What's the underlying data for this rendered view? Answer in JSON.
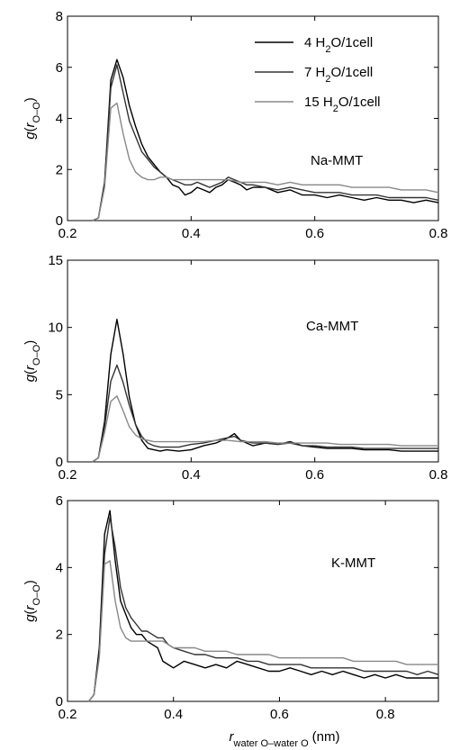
{
  "chart_data": [
    {
      "type": "line",
      "annotation": "Na-MMT",
      "ylabel": "g(r_{O–O})",
      "xlim": [
        0.2,
        0.8
      ],
      "ylim": [
        0,
        8
      ],
      "xticks": [
        0.2,
        0.4,
        0.6,
        0.8
      ],
      "xtick_labels": [
        "0.2",
        "0.4",
        "0.6",
        "0.8"
      ],
      "yticks": [
        0,
        2,
        4,
        6,
        8
      ],
      "ytick_labels": [
        "0",
        "2",
        "4",
        "6",
        "8"
      ],
      "legend": {
        "position": "top-right",
        "entries": [
          {
            "pre": "4 H",
            "sub": "2",
            "post": "O/1cell"
          },
          {
            "pre": "7 H",
            "sub": "2",
            "post": "O/1cell"
          },
          {
            "pre": "15 H",
            "sub": "2",
            "post": "O/1cell"
          }
        ]
      },
      "series": [
        {
          "name": "4 H2O/1cell",
          "color": "#000000",
          "x": [
            0.24,
            0.25,
            0.26,
            0.27,
            0.28,
            0.29,
            0.3,
            0.31,
            0.32,
            0.33,
            0.34,
            0.35,
            0.36,
            0.37,
            0.38,
            0.39,
            0.4,
            0.41,
            0.42,
            0.43,
            0.44,
            0.45,
            0.46,
            0.47,
            0.48,
            0.49,
            0.5,
            0.52,
            0.54,
            0.56,
            0.58,
            0.6,
            0.62,
            0.64,
            0.66,
            0.68,
            0.7,
            0.72,
            0.74,
            0.76,
            0.78,
            0.8
          ],
          "y": [
            0,
            0.1,
            1.5,
            5.5,
            6.3,
            5.6,
            4.5,
            3.7,
            3.0,
            2.5,
            2.2,
            1.9,
            1.7,
            1.4,
            1.3,
            1.0,
            1.1,
            1.3,
            1.2,
            1.1,
            1.3,
            1.4,
            1.6,
            1.5,
            1.4,
            1.2,
            1.3,
            1.3,
            1.1,
            1.2,
            1.0,
            1.0,
            0.9,
            1.0,
            0.9,
            0.8,
            0.9,
            0.8,
            0.8,
            0.7,
            0.8,
            0.7
          ]
        },
        {
          "name": "7 H2O/1cell",
          "color": "#333333",
          "x": [
            0.24,
            0.25,
            0.26,
            0.27,
            0.28,
            0.29,
            0.3,
            0.31,
            0.32,
            0.33,
            0.34,
            0.35,
            0.36,
            0.37,
            0.38,
            0.39,
            0.4,
            0.41,
            0.42,
            0.43,
            0.44,
            0.45,
            0.46,
            0.47,
            0.48,
            0.49,
            0.5,
            0.52,
            0.54,
            0.56,
            0.58,
            0.6,
            0.62,
            0.64,
            0.66,
            0.68,
            0.7,
            0.72,
            0.74,
            0.76,
            0.78,
            0.8
          ],
          "y": [
            0,
            0.1,
            1.4,
            5.2,
            6.1,
            5.0,
            3.9,
            3.3,
            2.7,
            2.4,
            2.1,
            1.9,
            1.7,
            1.6,
            1.5,
            1.4,
            1.4,
            1.5,
            1.4,
            1.3,
            1.4,
            1.5,
            1.7,
            1.6,
            1.5,
            1.4,
            1.4,
            1.3,
            1.2,
            1.3,
            1.2,
            1.1,
            1.1,
            1.1,
            1.0,
            1.0,
            1.0,
            0.9,
            0.9,
            0.9,
            0.9,
            0.8
          ]
        },
        {
          "name": "15 H2O/1cell",
          "color": "#888888",
          "x": [
            0.24,
            0.25,
            0.26,
            0.27,
            0.28,
            0.29,
            0.3,
            0.31,
            0.32,
            0.33,
            0.34,
            0.35,
            0.36,
            0.37,
            0.38,
            0.39,
            0.4,
            0.42,
            0.44,
            0.46,
            0.48,
            0.5,
            0.52,
            0.54,
            0.56,
            0.58,
            0.6,
            0.62,
            0.64,
            0.66,
            0.68,
            0.7,
            0.72,
            0.74,
            0.76,
            0.78,
            0.8
          ],
          "y": [
            0,
            0.1,
            1.3,
            4.4,
            4.6,
            3.4,
            2.4,
            1.9,
            1.7,
            1.6,
            1.6,
            1.7,
            1.7,
            1.6,
            1.6,
            1.6,
            1.6,
            1.6,
            1.6,
            1.6,
            1.5,
            1.5,
            1.5,
            1.4,
            1.5,
            1.4,
            1.4,
            1.4,
            1.4,
            1.3,
            1.3,
            1.3,
            1.3,
            1.2,
            1.2,
            1.2,
            1.1
          ]
        }
      ]
    },
    {
      "type": "line",
      "annotation": "Ca-MMT",
      "ylabel": "g(r_{O–O})",
      "xlim": [
        0.2,
        0.8
      ],
      "ylim": [
        0,
        15
      ],
      "xticks": [
        0.2,
        0.4,
        0.6,
        0.8
      ],
      "xtick_labels": [
        "0.2",
        "0.4",
        "0.6",
        "0.8"
      ],
      "yticks": [
        0,
        5,
        10,
        15
      ],
      "ytick_labels": [
        "0",
        "5",
        "10",
        "15"
      ],
      "series": [
        {
          "name": "4 H2O/1cell",
          "color": "#000000",
          "x": [
            0.24,
            0.25,
            0.26,
            0.27,
            0.28,
            0.29,
            0.3,
            0.31,
            0.32,
            0.33,
            0.34,
            0.35,
            0.36,
            0.38,
            0.4,
            0.42,
            0.44,
            0.46,
            0.47,
            0.48,
            0.5,
            0.52,
            0.54,
            0.56,
            0.58,
            0.6,
            0.62,
            0.64,
            0.66,
            0.68,
            0.7,
            0.72,
            0.74,
            0.76,
            0.78,
            0.8
          ],
          "y": [
            0,
            0.3,
            3.0,
            8.0,
            10.6,
            8.0,
            4.8,
            2.8,
            1.6,
            1.0,
            0.9,
            0.8,
            0.9,
            0.8,
            0.9,
            1.2,
            1.4,
            1.8,
            2.1,
            1.6,
            1.2,
            1.4,
            1.3,
            1.5,
            1.2,
            1.1,
            1.0,
            1.0,
            1.0,
            0.9,
            0.9,
            0.9,
            0.8,
            0.8,
            0.8,
            0.8
          ]
        },
        {
          "name": "7 H2O/1cell",
          "color": "#333333",
          "x": [
            0.24,
            0.25,
            0.26,
            0.27,
            0.28,
            0.29,
            0.3,
            0.31,
            0.32,
            0.33,
            0.34,
            0.35,
            0.36,
            0.38,
            0.4,
            0.42,
            0.44,
            0.46,
            0.47,
            0.48,
            0.5,
            0.52,
            0.54,
            0.56,
            0.58,
            0.6,
            0.62,
            0.64,
            0.66,
            0.68,
            0.7,
            0.72,
            0.74,
            0.76,
            0.78,
            0.8
          ],
          "y": [
            0,
            0.3,
            2.6,
            6.0,
            7.2,
            5.9,
            4.2,
            2.8,
            1.9,
            1.4,
            1.2,
            1.1,
            1.1,
            1.1,
            1.3,
            1.4,
            1.6,
            1.8,
            1.9,
            1.6,
            1.4,
            1.4,
            1.3,
            1.4,
            1.2,
            1.2,
            1.1,
            1.1,
            1.1,
            1.0,
            1.0,
            1.0,
            1.0,
            1.0,
            1.0,
            1.0
          ]
        },
        {
          "name": "15 H2O/1cell",
          "color": "#888888",
          "x": [
            0.24,
            0.25,
            0.26,
            0.27,
            0.28,
            0.29,
            0.3,
            0.31,
            0.32,
            0.33,
            0.34,
            0.35,
            0.36,
            0.38,
            0.4,
            0.42,
            0.44,
            0.46,
            0.48,
            0.5,
            0.52,
            0.54,
            0.56,
            0.58,
            0.6,
            0.62,
            0.64,
            0.66,
            0.68,
            0.7,
            0.72,
            0.74,
            0.76,
            0.78,
            0.8
          ],
          "y": [
            0,
            0.3,
            2.2,
            4.5,
            4.9,
            3.8,
            2.6,
            2.0,
            1.7,
            1.6,
            1.5,
            1.5,
            1.5,
            1.5,
            1.5,
            1.5,
            1.6,
            1.6,
            1.5,
            1.5,
            1.5,
            1.4,
            1.4,
            1.4,
            1.4,
            1.4,
            1.3,
            1.3,
            1.3,
            1.3,
            1.3,
            1.2,
            1.2,
            1.2,
            1.2
          ]
        }
      ]
    },
    {
      "type": "line",
      "annotation": "K-MMT",
      "ylabel": "g(r_{O–O})",
      "xlabel_pre": "r",
      "xlabel_sub": "water O–water O",
      "xlabel_unit": "(nm)",
      "xlim": [
        0.2,
        0.9
      ],
      "ylim": [
        0,
        6
      ],
      "xticks": [
        0.2,
        0.4,
        0.6,
        0.8
      ],
      "xtick_labels": [
        "0.2",
        "0.4",
        "0.6",
        "0.8"
      ],
      "yticks": [
        0,
        2,
        4,
        6
      ],
      "ytick_labels": [
        "0",
        "2",
        "4",
        "6"
      ],
      "series": [
        {
          "name": "4 H2O/1cell",
          "color": "#000000",
          "x": [
            0.24,
            0.25,
            0.26,
            0.27,
            0.28,
            0.29,
            0.3,
            0.31,
            0.32,
            0.33,
            0.34,
            0.35,
            0.36,
            0.37,
            0.38,
            0.39,
            0.4,
            0.42,
            0.44,
            0.46,
            0.48,
            0.5,
            0.52,
            0.54,
            0.56,
            0.58,
            0.6,
            0.62,
            0.64,
            0.66,
            0.68,
            0.7,
            0.72,
            0.74,
            0.76,
            0.78,
            0.8,
            0.82,
            0.84,
            0.86,
            0.88,
            0.9
          ],
          "y": [
            0,
            0.2,
            1.6,
            5.0,
            5.7,
            4.2,
            3.0,
            2.6,
            2.2,
            2.0,
            2.0,
            1.8,
            1.7,
            1.6,
            1.2,
            1.1,
            1.0,
            1.2,
            1.1,
            1.0,
            1.1,
            1.0,
            1.2,
            1.1,
            1.0,
            0.9,
            0.9,
            1.0,
            0.9,
            0.8,
            0.9,
            0.8,
            0.9,
            0.8,
            0.7,
            0.8,
            0.7,
            0.8,
            0.7,
            0.7,
            0.7,
            0.7
          ]
        },
        {
          "name": "7 H2O/1cell",
          "color": "#333333",
          "x": [
            0.24,
            0.25,
            0.26,
            0.27,
            0.28,
            0.29,
            0.3,
            0.31,
            0.32,
            0.33,
            0.34,
            0.35,
            0.36,
            0.37,
            0.38,
            0.39,
            0.4,
            0.42,
            0.44,
            0.46,
            0.48,
            0.5,
            0.52,
            0.54,
            0.56,
            0.58,
            0.6,
            0.62,
            0.64,
            0.66,
            0.68,
            0.7,
            0.72,
            0.74,
            0.76,
            0.78,
            0.8,
            0.82,
            0.84,
            0.86,
            0.88,
            0.9
          ],
          "y": [
            0,
            0.2,
            1.4,
            4.4,
            5.5,
            4.6,
            3.4,
            2.8,
            2.5,
            2.3,
            2.1,
            2.1,
            2.0,
            1.9,
            1.9,
            1.7,
            1.6,
            1.5,
            1.4,
            1.4,
            1.3,
            1.3,
            1.3,
            1.2,
            1.2,
            1.1,
            1.1,
            1.1,
            1.1,
            1.0,
            1.0,
            1.0,
            1.0,
            1.0,
            0.9,
            0.9,
            0.9,
            0.9,
            0.9,
            0.8,
            0.9,
            0.8
          ]
        },
        {
          "name": "15 H2O/1cell",
          "color": "#888888",
          "x": [
            0.24,
            0.25,
            0.26,
            0.27,
            0.28,
            0.29,
            0.3,
            0.31,
            0.32,
            0.33,
            0.34,
            0.35,
            0.36,
            0.37,
            0.38,
            0.39,
            0.4,
            0.42,
            0.44,
            0.46,
            0.48,
            0.5,
            0.52,
            0.54,
            0.56,
            0.58,
            0.6,
            0.62,
            0.64,
            0.66,
            0.68,
            0.7,
            0.72,
            0.74,
            0.76,
            0.78,
            0.8,
            0.82,
            0.84,
            0.86,
            0.88,
            0.9
          ],
          "y": [
            0,
            0.2,
            1.3,
            4.1,
            4.2,
            3.0,
            2.2,
            1.9,
            1.8,
            1.8,
            1.8,
            1.8,
            1.8,
            1.8,
            1.8,
            1.7,
            1.6,
            1.6,
            1.6,
            1.5,
            1.5,
            1.5,
            1.4,
            1.4,
            1.4,
            1.4,
            1.3,
            1.3,
            1.3,
            1.3,
            1.3,
            1.3,
            1.3,
            1.2,
            1.2,
            1.2,
            1.2,
            1.2,
            1.1,
            1.1,
            1.1,
            1.1
          ]
        }
      ]
    }
  ]
}
